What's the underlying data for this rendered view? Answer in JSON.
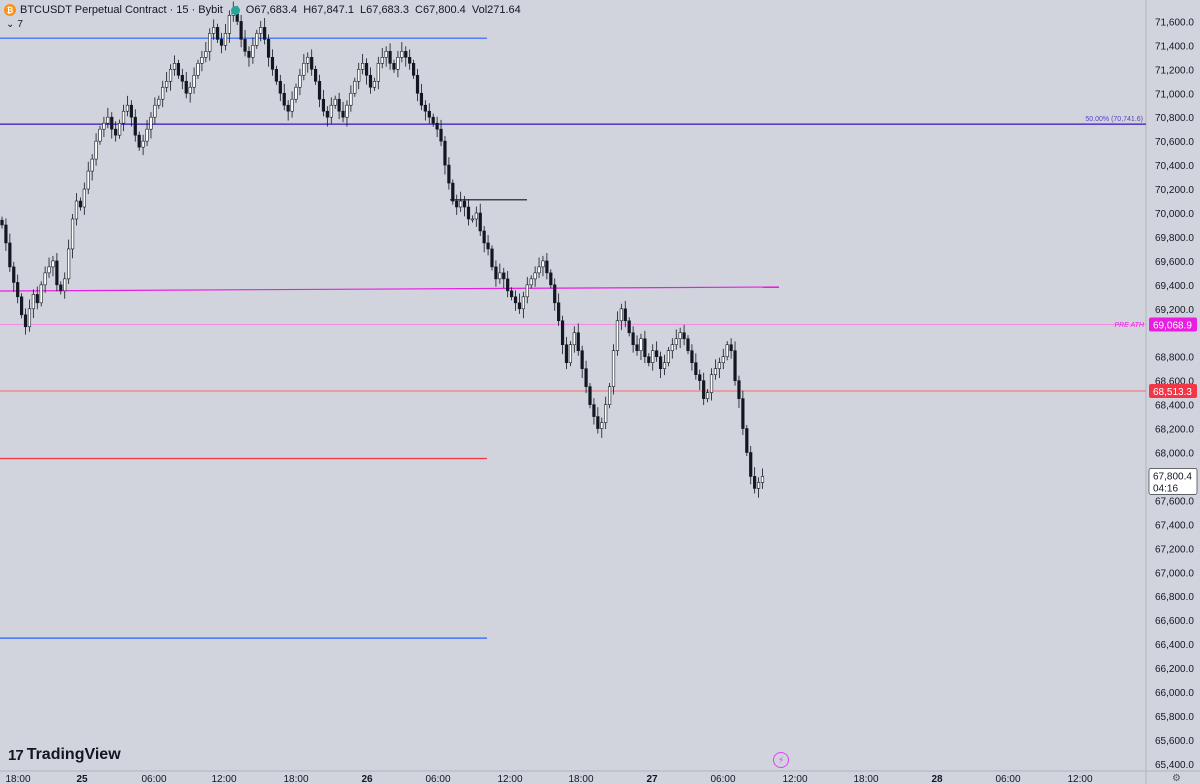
{
  "header": {
    "symbol": "BTCUSDT Perpetual Contract · 15 · Bybit",
    "open": "O67,683.4",
    "high": "H67,847.1",
    "low": "L67,683.3",
    "close": "C67,800.4",
    "volume": "Vol271.64",
    "indicator_count": "7"
  },
  "branding": {
    "logo_text": "TradingView"
  },
  "price_axis": {
    "labels": [
      "71,600.0",
      "71,400.0",
      "71,200.0",
      "71,000.0",
      "70,800.0",
      "70,600.0",
      "70,400.0",
      "70,200.0",
      "70,000.0",
      "69,800.0",
      "69,600.0",
      "69,400.0",
      "69,200.0",
      "68,800.0",
      "68,600.0",
      "68,400.0",
      "68,200.0",
      "68,000.0",
      "67,600.0",
      "67,400.0",
      "67,200.0",
      "67,000.0",
      "66,800.0",
      "66,600.0",
      "66,400.0",
      "66,200.0",
      "66,000.0",
      "65,800.0",
      "65,600.0",
      "65,400.0"
    ],
    "current_price": "67,800.4",
    "countdown": "04:16",
    "pre_ath_price": "69,068.9",
    "red_level_price": "68,513.3"
  },
  "time_axis": {
    "labels": [
      "18:00",
      "25",
      "06:00",
      "12:00",
      "18:00",
      "26",
      "06:00",
      "12:00",
      "18:00",
      "27",
      "06:00",
      "12:00",
      "18:00",
      "28",
      "06:00",
      "12:00"
    ]
  },
  "annotations": {
    "fib_label": "50.00% (70,741.6)",
    "pre_ath_label": "PRE ATH"
  },
  "colors": {
    "background": "#d1d4dc",
    "candle": "#131722",
    "blue_line": "#2962ff",
    "purple_line": "#5b3fc4",
    "magenta": "#e91ee3",
    "pink_line": "#f48fe6",
    "red_line": "#f23645",
    "salmon_line": "#f77c80"
  },
  "chart_data": {
    "type": "candlestick",
    "title": "BTCUSDT Perpetual Contract · 15 · Bybit",
    "ylim": [
      65400,
      71800
    ],
    "x_ticks": [
      "18:00",
      "25",
      "06:00",
      "12:00",
      "18:00",
      "26",
      "06:00",
      "12:00",
      "18:00",
      "27",
      "06:00",
      "12:00",
      "18:00",
      "28",
      "06:00",
      "12:00"
    ],
    "last": {
      "open": 67683.4,
      "high": 67847.1,
      "low": 67683.3,
      "close": 67800.4,
      "volume": 271.64
    },
    "closes": [
      69900,
      69750,
      69550,
      69420,
      69300,
      69150,
      69050,
      69200,
      69320,
      69250,
      69400,
      69500,
      69550,
      69600,
      69400,
      69350,
      69450,
      69700,
      69950,
      70100,
      70050,
      70200,
      70350,
      70450,
      70600,
      70700,
      70750,
      70800,
      70700,
      70650,
      70750,
      70850,
      70900,
      70800,
      70650,
      70550,
      70600,
      70700,
      70800,
      70900,
      70950,
      71050,
      71100,
      71200,
      71250,
      71150,
      71100,
      71000,
      71050,
      71150,
      71250,
      71300,
      71350,
      71500,
      71550,
      71450,
      71400,
      71500,
      71650,
      71700,
      71600,
      71450,
      71350,
      71300,
      71400,
      71500,
      71550,
      71450,
      71300,
      71200,
      71100,
      71000,
      70900,
      70850,
      70950,
      71050,
      71150,
      71250,
      71300,
      71200,
      71100,
      70950,
      70850,
      70800,
      70900,
      70950,
      70850,
      70800,
      70900,
      71000,
      71100,
      71200,
      71250,
      71150,
      71050,
      71100,
      71250,
      71300,
      71350,
      71250,
      71200,
      71300,
      71350,
      71300,
      71250,
      71150,
      71000,
      70900,
      70850,
      70800,
      70750,
      70700,
      70600,
      70400,
      70250,
      70100,
      70050,
      70100,
      70050,
      69950,
      69950,
      70000,
      69850,
      69750,
      69700,
      69550,
      69450,
      69500,
      69450,
      69350,
      69300,
      69250,
      69200,
      69300,
      69400,
      69450,
      69500,
      69550,
      69600,
      69500,
      69400,
      69250,
      69100,
      68900,
      68750,
      68900,
      69000,
      68850,
      68700,
      68550,
      68400,
      68300,
      68200,
      68250,
      68400,
      68550,
      68850,
      69100,
      69200,
      69100,
      69000,
      68900,
      68850,
      68950,
      68800,
      68750,
      68850,
      68800,
      68700,
      68750,
      68850,
      68900,
      68950,
      69000,
      68950,
      68850,
      68750,
      68650,
      68600,
      68450,
      68500,
      68650,
      68700,
      68750,
      68800,
      68900,
      68850,
      68600,
      68450,
      68200,
      68000,
      67800,
      67700,
      67750,
      67800
    ],
    "horizontal_levels": [
      {
        "price": 71460,
        "color": "blue",
        "span": "partial"
      },
      {
        "price": 70741.6,
        "color": "purple",
        "span": "full",
        "label": "50.00% (70,741.6)"
      },
      {
        "price": 69068.9,
        "color": "pink",
        "span": "full",
        "label": "PRE ATH"
      },
      {
        "price": 68513.3,
        "color": "salmon",
        "span": "full"
      },
      {
        "price": 67950,
        "color": "red",
        "span": "partial"
      },
      {
        "price": 66450,
        "color": "blue",
        "span": "partial"
      },
      {
        "price": 70110,
        "color": "dark",
        "span": "segment"
      }
    ]
  }
}
